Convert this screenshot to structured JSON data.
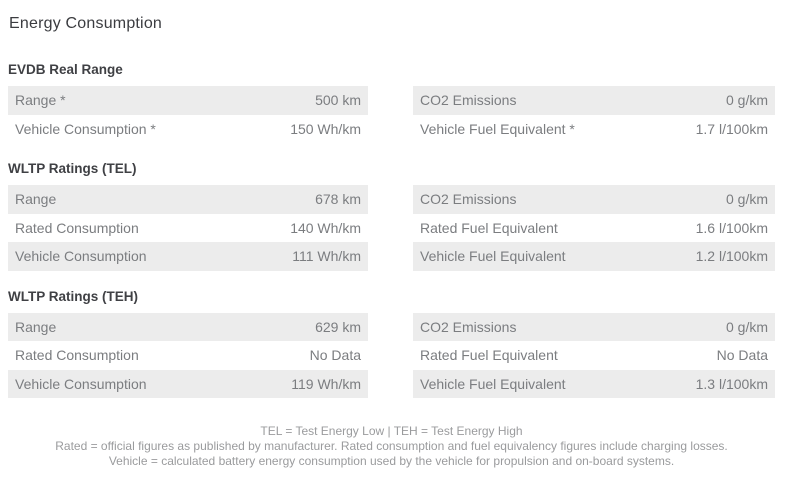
{
  "page": {
    "title": "Energy Consumption"
  },
  "sections": [
    {
      "header": "EVDB Real Range",
      "left_rows": [
        {
          "label": "Range *",
          "value": "500 km"
        },
        {
          "label": "Vehicle Consumption *",
          "value": "150 Wh/km"
        }
      ],
      "right_rows": [
        {
          "label": "CO2 Emissions",
          "value": "0 g/km"
        },
        {
          "label": "Vehicle Fuel Equivalent *",
          "value": "1.7 l/100km"
        }
      ]
    },
    {
      "header": "WLTP Ratings (TEL)",
      "left_rows": [
        {
          "label": "Range",
          "value": "678 km"
        },
        {
          "label": "Rated Consumption",
          "value": "140 Wh/km"
        },
        {
          "label": "Vehicle Consumption",
          "value": "111 Wh/km"
        }
      ],
      "right_rows": [
        {
          "label": "CO2 Emissions",
          "value": "0 g/km"
        },
        {
          "label": "Rated Fuel Equivalent",
          "value": "1.6 l/100km"
        },
        {
          "label": "Vehicle Fuel Equivalent",
          "value": "1.2 l/100km"
        }
      ]
    },
    {
      "header": "WLTP Ratings (TEH)",
      "left_rows": [
        {
          "label": "Range",
          "value": "629 km"
        },
        {
          "label": "Rated Consumption",
          "value": "No Data"
        },
        {
          "label": "Vehicle Consumption",
          "value": "119 Wh/km"
        }
      ],
      "right_rows": [
        {
          "label": "CO2 Emissions",
          "value": "0 g/km"
        },
        {
          "label": "Rated Fuel Equivalent",
          "value": "No Data"
        },
        {
          "label": "Vehicle Fuel Equivalent",
          "value": "1.3 l/100km"
        }
      ]
    }
  ],
  "footnotes": [
    "TEL = Test Energy Low | TEH = Test Energy High",
    "Rated = official figures as published by manufacturer. Rated consumption and fuel equivalency figures include charging losses.",
    "Vehicle = calculated battery energy consumption used by the vehicle for propulsion and on-board systems."
  ],
  "colors": {
    "row_stripe": "#ececec",
    "row_text": "#7b7d80",
    "heading_text": "#3f4044",
    "title_text": "#3b3c40",
    "footnote_text": "#9a9b9d"
  }
}
